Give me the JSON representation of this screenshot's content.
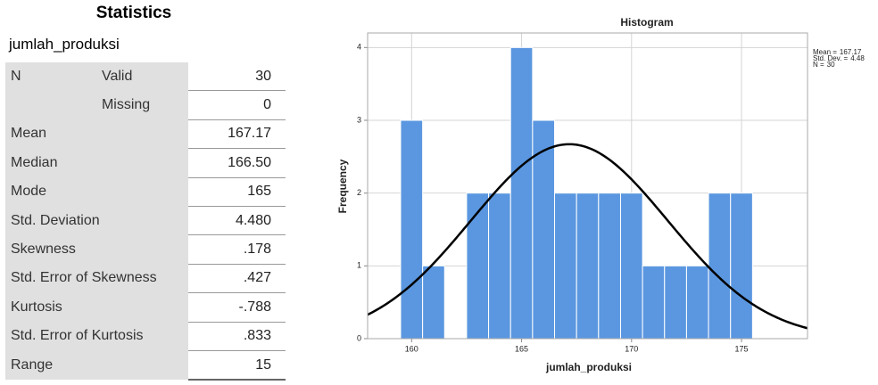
{
  "table": {
    "title": "Statistics",
    "variable": "jumlah_produksi",
    "rows": [
      {
        "label": "N",
        "sub": "Valid",
        "value": "30"
      },
      {
        "sub": "Missing",
        "value": "0"
      },
      {
        "label": "Mean",
        "value": "167.17"
      },
      {
        "label": "Median",
        "value": "166.50"
      },
      {
        "label": "Mode",
        "value": "165"
      },
      {
        "label": "Std. Deviation",
        "value": "4.480"
      },
      {
        "label": "Skewness",
        "value": ".178"
      },
      {
        "label": "Std. Error of Skewness",
        "value": ".427"
      },
      {
        "label": "Kurtosis",
        "value": "-.788"
      },
      {
        "label": "Std. Error of Kurtosis",
        "value": ".833"
      },
      {
        "label": "Range",
        "value": "15"
      }
    ]
  },
  "chart_data": {
    "type": "histogram",
    "title": "Histogram",
    "x_label": "jumlah_produksi",
    "y_label": "Frequency",
    "bins": [
      159.5,
      160.5,
      161.5,
      162.5,
      163.5,
      164.5,
      165.5,
      166.5,
      167.5,
      168.5,
      169.5,
      170.5,
      171.5,
      172.5,
      173.5,
      174.5,
      175.5
    ],
    "values": [
      3,
      1,
      0,
      2,
      2,
      4,
      3,
      2,
      2,
      2,
      2,
      1,
      1,
      1,
      2,
      2
    ],
    "color": "#5b97e0",
    "xlim": [
      158,
      178
    ],
    "xticks": [
      160,
      165,
      170,
      175
    ],
    "ylim": [
      0,
      4.2
    ],
    "yticks": [
      0,
      1,
      2,
      3,
      4
    ],
    "grid": true,
    "normal_curve": {
      "mean": 167.17,
      "sd": 4.48,
      "n": 30
    },
    "stats_legend": [
      {
        "label": "Mean =",
        "value": 167.17
      },
      {
        "label": "Std. Dev. =",
        "value": 4.48
      },
      {
        "label": "N =",
        "value": 30
      }
    ]
  }
}
